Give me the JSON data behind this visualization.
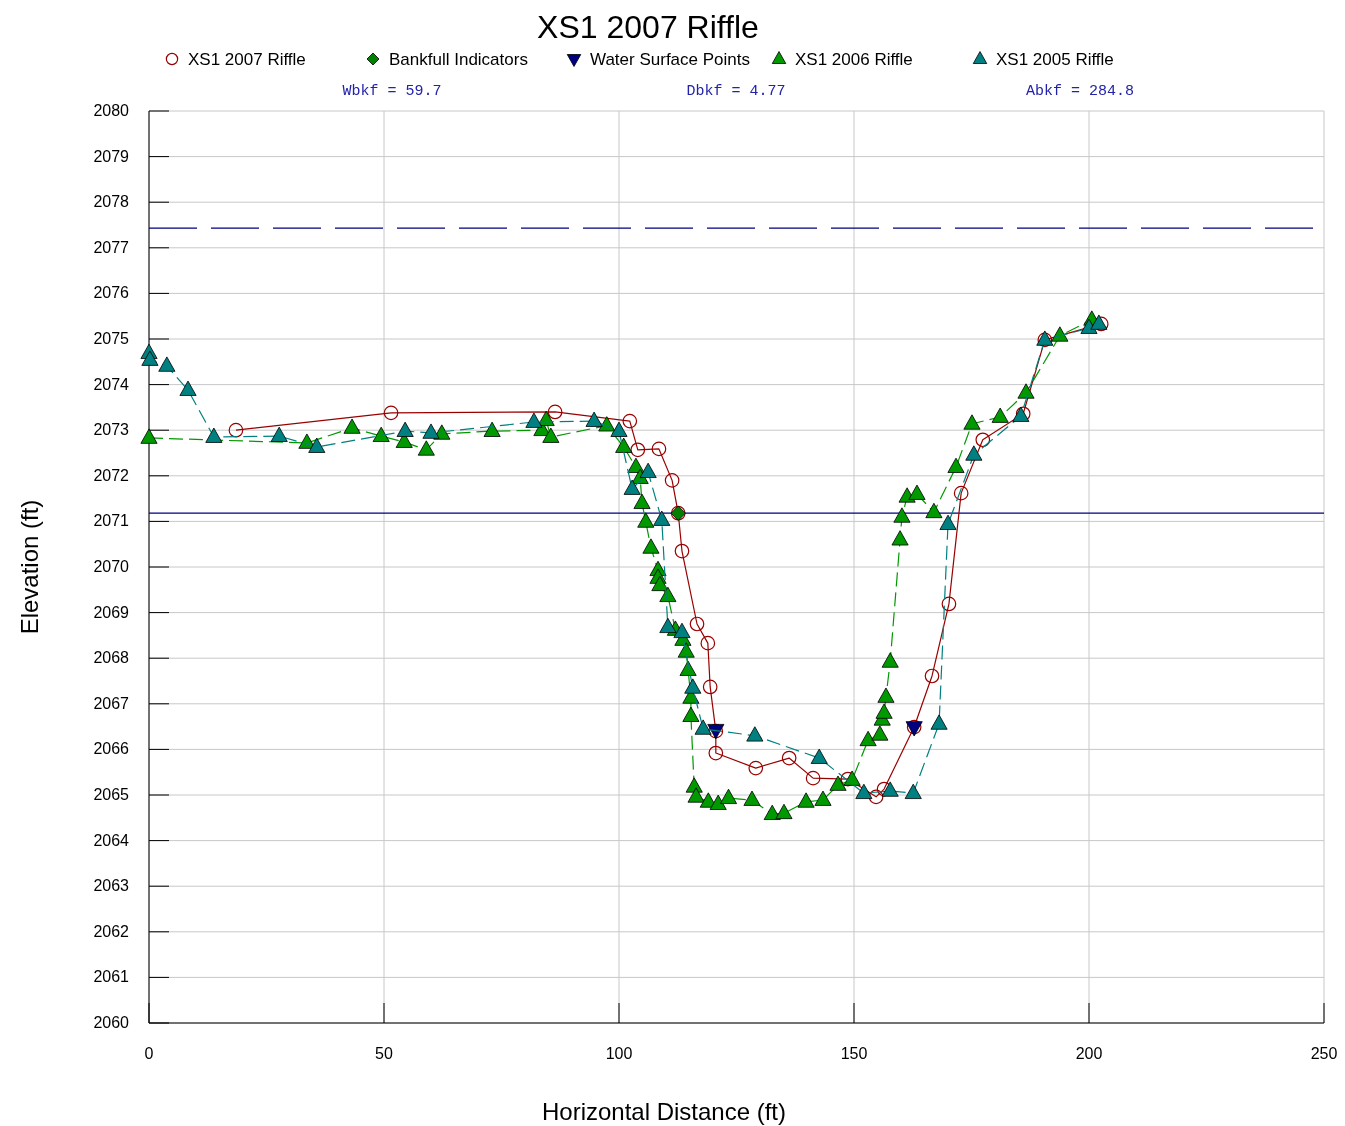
{
  "chart_data": {
    "type": "line",
    "title": "XS1 2007 Riffle",
    "xlabel": "Horizontal Distance (ft)",
    "ylabel": "Elevation (ft)",
    "annotations": [
      "Wbkf = 59.7",
      "Dbkf = 4.77",
      "Abkf = 284.8"
    ],
    "xlim": [
      0,
      250
    ],
    "xticks": [
      0,
      50,
      100,
      150,
      200,
      250
    ],
    "ylim": [
      2060,
      2080
    ],
    "yticks": [
      2060,
      2061,
      2062,
      2063,
      2064,
      2065,
      2066,
      2067,
      2068,
      2069,
      2070,
      2071,
      2072,
      2073,
      2074,
      2075,
      2076,
      2077,
      2078,
      2079,
      2080
    ],
    "grid": true,
    "legend": "top",
    "ref_lines": [
      {
        "axis": "y",
        "value": 2071.18,
        "color": "#000080",
        "line_style": "solid"
      },
      {
        "axis": "y",
        "value": 2077.43,
        "color": "#000080",
        "line_style": "dashed"
      }
    ],
    "series": [
      {
        "name": "XS1 2007 Riffle",
        "color": "#990000",
        "marker": "circle",
        "line_style": "solid",
        "x": [
          18.5,
          51.5,
          86.4,
          102.3,
          104.0,
          108.5,
          111.3,
          112.6,
          113.4,
          116.6,
          118.9,
          119.4,
          120.6,
          120.6,
          129.1,
          136.2,
          141.3,
          148.7,
          154.7,
          156.4,
          162.8,
          166.6,
          170.2,
          172.8,
          177.4,
          186.0,
          190.6,
          202.6
        ],
        "values": [
          2073.0,
          2073.38,
          2073.4,
          2073.2,
          2072.57,
          2072.59,
          2071.9,
          2071.18,
          2070.35,
          2068.75,
          2068.33,
          2067.37,
          2066.4,
          2065.92,
          2065.59,
          2065.81,
          2065.37,
          2065.35,
          2064.96,
          2065.13,
          2066.49,
          2067.61,
          2069.19,
          2071.62,
          2072.79,
          2073.36,
          2074.98,
          2075.33
        ]
      },
      {
        "name": "Bankfull Indicators",
        "type": "scatter",
        "color": "#008000",
        "marker": "diamond",
        "x": [
          112.6
        ],
        "values": [
          2071.18
        ]
      },
      {
        "name": "Water Surface Points",
        "type": "scatter",
        "color": "#000080",
        "marker": "triangle-down",
        "x": [
          120.6,
          162.8
        ],
        "values": [
          2066.43,
          2066.49
        ]
      },
      {
        "name": "XS1 2006 Riffle",
        "color": "#009900",
        "marker": "triangle",
        "line_style": "dashed",
        "x": [
          0,
          33.6,
          43.2,
          49.4,
          54.3,
          59,
          62.3,
          73,
          83.6,
          84.5,
          85.5,
          97.4,
          101,
          103.6,
          104.5,
          104.9,
          105.7,
          106.8,
          108.3,
          108.3,
          108.7,
          110.4,
          112,
          113.6,
          114.3,
          114.7,
          115.3,
          115.3,
          116,
          116.4,
          119,
          121.1,
          123.3,
          128.3,
          132.6,
          135.1,
          139.8,
          143.4,
          146.6,
          149.6,
          153,
          155.5,
          156,
          156.4,
          156.8,
          157.7,
          159.8,
          160.2,
          161.3,
          163.4,
          167,
          171.7,
          175.1,
          181.1,
          186.6,
          193.8,
          200.6
        ],
        "values": [
          2072.83,
          2072.72,
          2073.05,
          2072.87,
          2072.74,
          2072.57,
          2072.92,
          2072.98,
          2073.0,
          2073.22,
          2072.85,
          2073.1,
          2072.63,
          2072.19,
          2071.95,
          2071.4,
          2070.99,
          2070.42,
          2069.93,
          2069.76,
          2069.6,
          2069.36,
          2068.62,
          2068.4,
          2068.14,
          2067.74,
          2067.13,
          2066.73,
          2065.18,
          2064.96,
          2064.85,
          2064.8,
          2064.93,
          2064.89,
          2064.58,
          2064.6,
          2064.85,
          2064.89,
          2065.22,
          2065.33,
          2066.2,
          2066.32,
          2066.65,
          2066.8,
          2067.15,
          2067.92,
          2070.6,
          2071.1,
          2071.54,
          2071.6,
          2071.2,
          2072.19,
          2073.14,
          2073.29,
          2073.82,
          2075.07,
          2075.42
        ]
      },
      {
        "name": "XS1 2005 Riffle",
        "color": "#008080",
        "marker": "triangle",
        "line_style": "dashed",
        "x": [
          0,
          0.2,
          3.8,
          8.3,
          13.8,
          27.7,
          35.7,
          54.5,
          60,
          81.9,
          94.7,
          100,
          102.8,
          106.2,
          109.1,
          110.4,
          113.4,
          115.7,
          117.9,
          128.9,
          142.6,
          152.1,
          157.7,
          162.6,
          168.1,
          170,
          175.5,
          185.5,
          190.6,
          200,
          202.1
        ],
        "values": [
          2074.69,
          2074.54,
          2074.41,
          2073.88,
          2072.85,
          2072.87,
          2072.63,
          2072.98,
          2072.94,
          2073.18,
          2073.2,
          2072.98,
          2071.71,
          2072.08,
          2071.03,
          2068.68,
          2068.57,
          2067.35,
          2066.45,
          2066.3,
          2065.81,
          2065.04,
          2065.09,
          2065.04,
          2066.56,
          2070.94,
          2072.46,
          2073.31,
          2074.98,
          2075.24,
          2075.33
        ]
      }
    ]
  }
}
